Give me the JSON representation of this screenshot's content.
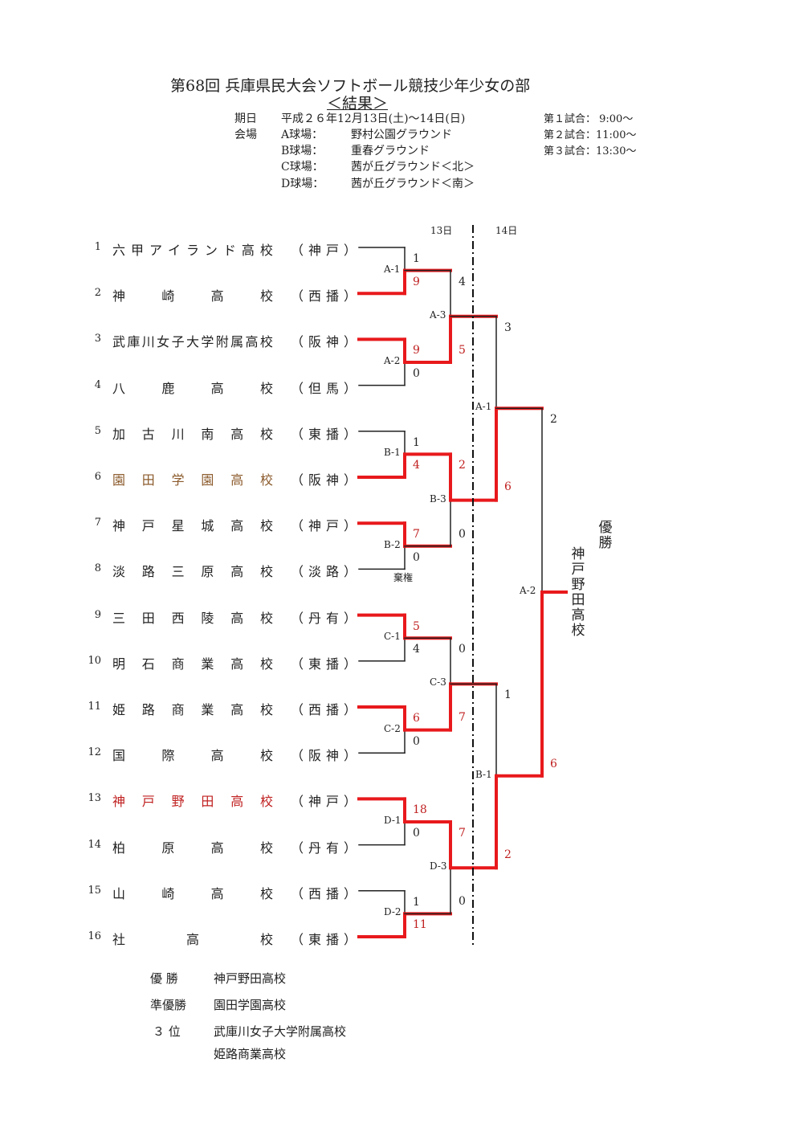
{
  "title": "第68回 兵庫県民大会ソフトボール競技少年少女の部",
  "subtitle": "＜結果＞",
  "info": {
    "date_label": "期日",
    "date_value": "平成２６年12月13日(土)～14日(日)",
    "venue_label": "会場",
    "fields": [
      {
        "label": "A球場：",
        "name": "野村公園グラウンド"
      },
      {
        "label": "B球場：",
        "name": "重春グラウンド"
      },
      {
        "label": "C球場：",
        "name": "茜が丘グラウンド＜北＞"
      },
      {
        "label": "D球場：",
        "name": "茜が丘グラウンド＜南＞"
      }
    ],
    "schedule": [
      "第１試合：  9:00～",
      "第２試合：11:00～",
      "第３試合：13:30～"
    ]
  },
  "day_labels": [
    "13日",
    "14日"
  ],
  "teams": [
    {
      "no": "1",
      "name": "六甲アイランド高校",
      "region": "（神戸）"
    },
    {
      "no": "2",
      "name": "神崎高校",
      "region": "（西播）"
    },
    {
      "no": "3",
      "name": "武庫川女子大学附属高校",
      "region": "（阪神）"
    },
    {
      "no": "4",
      "name": "八鹿高校",
      "region": "（但馬）"
    },
    {
      "no": "5",
      "name": "加古川南高校",
      "region": "（東播）"
    },
    {
      "no": "6",
      "name": "園田学園高校",
      "region": "（阪神）"
    },
    {
      "no": "7",
      "name": "神戸星城高校",
      "region": "（神戸）"
    },
    {
      "no": "8",
      "name": "淡路三原高校",
      "region": "（淡路）"
    },
    {
      "no": "9",
      "name": "三田西陵高校",
      "region": "（丹有）"
    },
    {
      "no": "10",
      "name": "明石商業高校",
      "region": "（東播）"
    },
    {
      "no": "11",
      "name": "姫路商業高校",
      "region": "（西播）"
    },
    {
      "no": "12",
      "name": "国際高校",
      "region": "（阪神）"
    },
    {
      "no": "13",
      "name": "神戸野田高校",
      "region": "（神戸）"
    },
    {
      "no": "14",
      "name": "柏原高校",
      "region": "（丹有）"
    },
    {
      "no": "15",
      "name": "山崎高校",
      "region": "（西播）"
    },
    {
      "no": "16",
      "name": "社高校",
      "region": "（東播）"
    }
  ],
  "r1": [
    {
      "label": "A-1",
      "top": "1",
      "bottom": "9",
      "winner": "bottom"
    },
    {
      "label": "A-2",
      "top": "9",
      "bottom": "0",
      "winner": "top"
    },
    {
      "label": "B-1",
      "top": "1",
      "bottom": "4",
      "winner": "bottom"
    },
    {
      "label": "B-2",
      "top": "7",
      "bottom": "0",
      "winner": "top",
      "note": "棄権"
    },
    {
      "label": "C-1",
      "top": "5",
      "bottom": "4",
      "winner": "top"
    },
    {
      "label": "C-2",
      "top": "6",
      "bottom": "0",
      "winner": "top"
    },
    {
      "label": "D-1",
      "top": "18",
      "bottom": "0",
      "winner": "top"
    },
    {
      "label": "D-2",
      "top": "1",
      "bottom": "11",
      "winner": "bottom"
    }
  ],
  "r2": [
    {
      "label": "A-3",
      "top": "4",
      "bottom": "5",
      "winner": "bottom"
    },
    {
      "label": "B-3",
      "top": "2",
      "bottom": "0",
      "winner": "top"
    },
    {
      "label": "C-3",
      "top": "0",
      "bottom": "7",
      "winner": "bottom"
    },
    {
      "label": "D-3",
      "top": "7",
      "bottom": "0",
      "winner": "top"
    }
  ],
  "r3": [
    {
      "label": "A-1",
      "top": "3",
      "bottom": "6",
      "winner": "bottom"
    },
    {
      "label": "B-1",
      "top": "1",
      "bottom": "2",
      "winner": "bottom"
    }
  ],
  "r4": [
    {
      "label": "A-2",
      "top": "2",
      "bottom": "6",
      "winner": "bottom"
    }
  ],
  "champion_heading": "優勝",
  "champion_name": "神戸野田高校",
  "results": [
    {
      "rank": "優 勝",
      "school": "神戸野田高校"
    },
    {
      "rank": "準優勝",
      "school": "園田学園高校"
    },
    {
      "rank": "３ 位",
      "school": "武庫川女子大学附属高校"
    },
    {
      "rank": "",
      "school": "姫路商業高校"
    }
  ],
  "colors": {
    "win": "#e8191c",
    "line": "#222222",
    "red_text": "#c02020",
    "brown_text": "#8b5a2b"
  }
}
